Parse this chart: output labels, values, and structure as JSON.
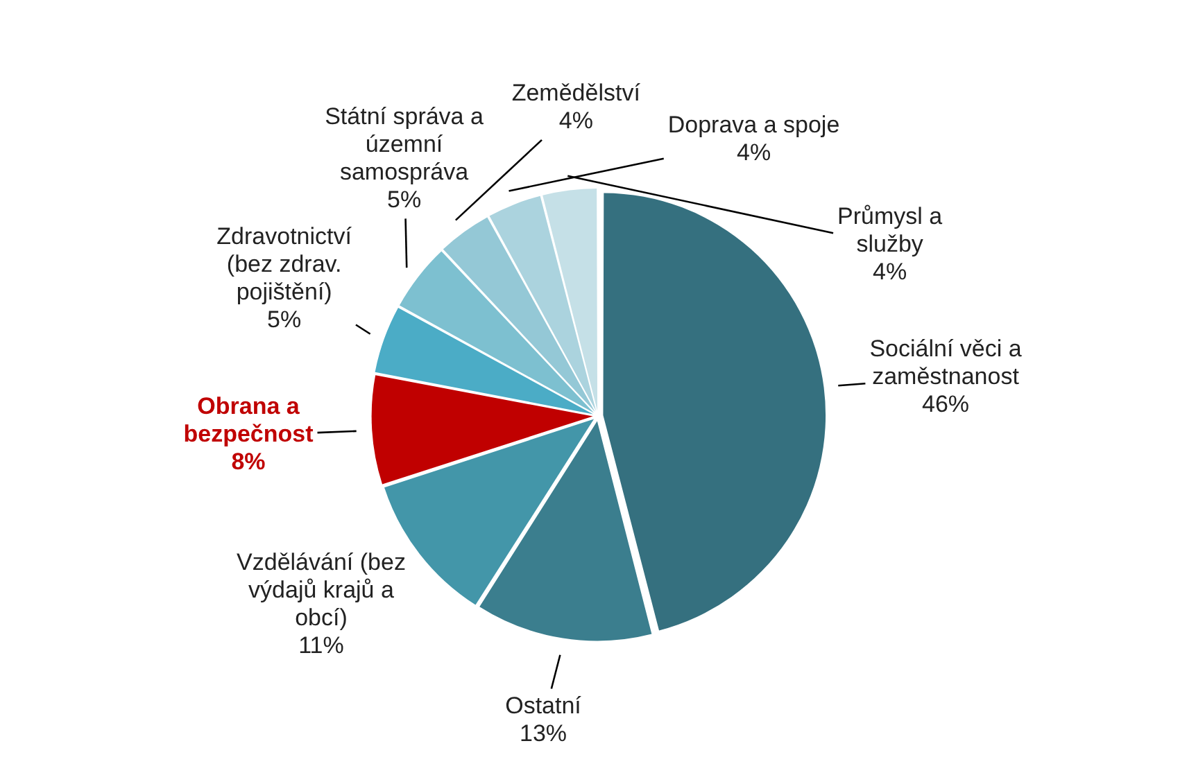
{
  "chart_data": {
    "type": "pie",
    "categories": [
      "Sociální věci a zaměstnanost",
      "Ostatní",
      "Vzdělávání (bez výdajů krajů a obcí)",
      "Obrana a bezpečnost",
      "Zdravotnictví (bez zdrav. pojištění)",
      "Státní správa a územní samospráva",
      "Zemědělství",
      "Doprava a spoje",
      "Průmysl a služby"
    ],
    "values": [
      46,
      13,
      11,
      8,
      5,
      5,
      4,
      4,
      4
    ],
    "value_labels": [
      "46%",
      "13%",
      "11%",
      "8%",
      "5%",
      "5%",
      "4%",
      "4%",
      "4%"
    ],
    "colors": [
      "#35707f",
      "#3b7e8e",
      "#4396a9",
      "#c00000",
      "#4bacc6",
      "#7dc0d0",
      "#94c8d6",
      "#abd3de",
      "#c5e0e7"
    ],
    "legend": false
  }
}
